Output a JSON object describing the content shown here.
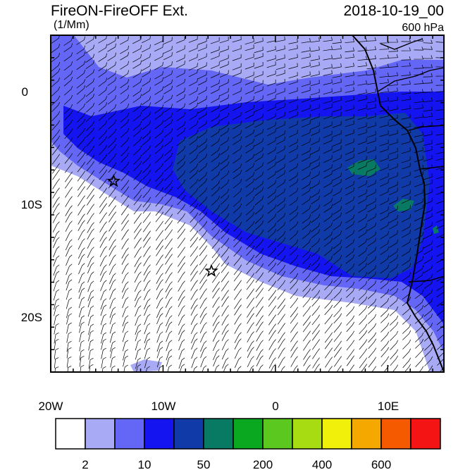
{
  "header": {
    "title": "FireON-FireOFF Ext.",
    "units": "(1/Mm)",
    "datetime": "2018-10-19_00",
    "level": "600 hPa"
  },
  "map": {
    "lon_range": [
      -20,
      15
    ],
    "lat_range": [
      -25,
      5
    ],
    "x_tick_labels": [
      "20W",
      "10W",
      "0",
      "10E"
    ],
    "y_tick_labels": [
      "0",
      "10S",
      "20S"
    ],
    "markers": [
      {
        "name": "star-1",
        "lon": -14.4,
        "lat": -8.0,
        "symbol": "star"
      },
      {
        "name": "star-2",
        "lon": -5.7,
        "lat": -16.0,
        "symbol": "star"
      }
    ],
    "overlay": "wind-barbs"
  },
  "colorbar": {
    "colors": [
      "#ffffff",
      "#a8aaf5",
      "#6466f5",
      "#1414f0",
      "#0f3aa8",
      "#087a64",
      "#0aa820",
      "#5ac81e",
      "#a8dc12",
      "#f0f00a",
      "#f5a800",
      "#f55a00",
      "#f51414"
    ],
    "labels": [
      "2",
      "10",
      "50",
      "200",
      "400",
      "600"
    ]
  }
}
